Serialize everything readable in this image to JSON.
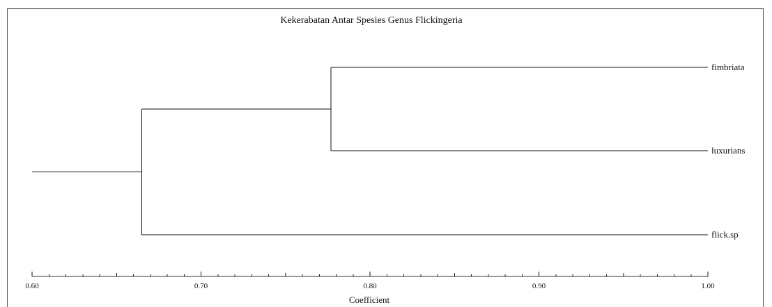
{
  "chart_data": {
    "type": "dendrogram",
    "title": "Kekerabatan Antar Spesies Genus Flickingeria",
    "xlabel": "Coefficient",
    "xlim": [
      0.6,
      1.0
    ],
    "major_ticks": [
      "0.60",
      "0.70",
      "0.80",
      "0.90",
      "1.00"
    ],
    "minor_tick_step": 0.01,
    "leaves": [
      "fimbriata",
      "luxurians",
      "flick.sp"
    ],
    "merges": [
      {
        "clusters": [
          "fimbriata",
          "luxurians"
        ],
        "coefficient": 0.777
      },
      {
        "clusters": [
          [
            "fimbriata",
            "luxurians"
          ],
          "flick.sp"
        ],
        "coefficient": 0.665
      }
    ],
    "root_coefficient": 0.6
  }
}
